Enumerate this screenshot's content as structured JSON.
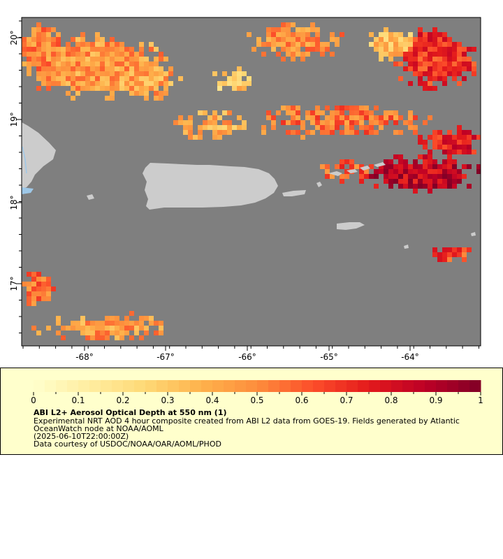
{
  "map": {
    "lon_ticks": [
      "-68°",
      "-67°",
      "-66°",
      "-65°",
      "-64°"
    ],
    "lat_ticks": [
      "20°",
      "19°",
      "18°",
      "17°"
    ],
    "colors": {
      "ocean": "#7f7f7f",
      "land": "#cccccc",
      "lake": "#9ec8e8"
    }
  },
  "legend": {
    "title": "ABI L2+ Aerosol Optical Depth at 550 nm (1)",
    "line1": "Experimental NRT AOD 4 hour composite created from ABI L2 data from GOES-19. Fields generated by Atlantic",
    "line2": "OceanWatch node at NOAA/AOML",
    "line3": "(2025-06-10T22:00:00Z)",
    "line4": "Data courtesy of USDOC/NOAA/OAR/AOML/PHOD",
    "ticks": [
      "0",
      "0.1",
      "0.2",
      "0.3",
      "0.4",
      "0.5",
      "0.6",
      "0.7",
      "0.8",
      "0.9",
      "1"
    ],
    "colorbar_stops": [
      "#ffffcc",
      "#ffeda0",
      "#fed976",
      "#feb24c",
      "#fd8d3c",
      "#fc4e2a",
      "#e31a1c",
      "#bd0026",
      "#800026"
    ]
  }
}
